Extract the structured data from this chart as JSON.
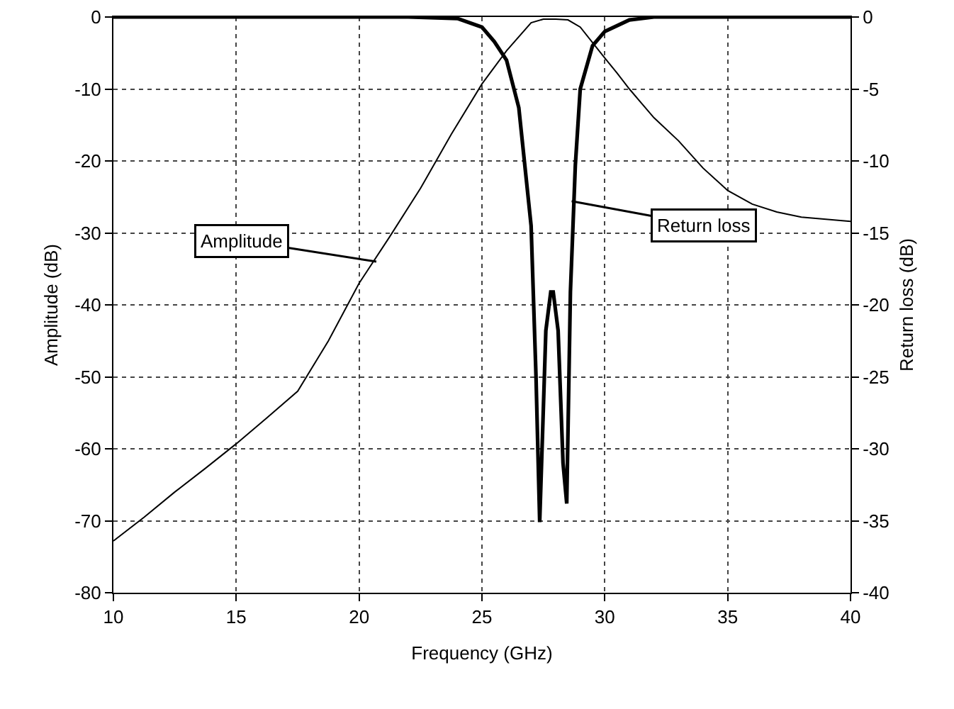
{
  "chart_data": {
    "type": "line",
    "xlabel": "Frequency (GHz)",
    "ylabel": "Amplitude (dB)",
    "y2label": "Return loss (dB)",
    "xlim": [
      10,
      40
    ],
    "xticks": [
      10,
      15,
      20,
      25,
      30,
      35,
      40
    ],
    "ylim": [
      -80,
      0
    ],
    "yticks": [
      -80,
      -70,
      -60,
      -50,
      -40,
      -30,
      -20,
      -10,
      0
    ],
    "y2lim": [
      -40,
      0
    ],
    "y2ticks": [
      -40,
      -35,
      -30,
      -25,
      -20,
      -15,
      -10,
      -5,
      0
    ],
    "grid": true,
    "marker": "none",
    "line_style": "solid",
    "series": [
      {
        "color": "#000000",
        "x": [
          10,
          11.25,
          12.5,
          13.75,
          15,
          16.25,
          17.5,
          18.75,
          20,
          21.25,
          22.5,
          23.75,
          25,
          26,
          27,
          27.5,
          28,
          28.5,
          29,
          30,
          30.5,
          31,
          31.5,
          32,
          33,
          34,
          35,
          36,
          37,
          38,
          40
        ],
        "values": [
          -72.8,
          -69.5,
          -66,
          -62.7,
          -59.3,
          -55.7,
          -52,
          -45,
          -37,
          -30.5,
          -23.8,
          -16.3,
          -9.3,
          -4.7,
          -0.8,
          -0.3,
          -0.3,
          -0.4,
          -1.4,
          -5.7,
          -7.8,
          -10,
          -12,
          -14,
          -17.2,
          -21,
          -24.1,
          -26,
          -27.1,
          -27.8,
          -28.4
        ]
      },
      {
        "color": "#000000",
        "axis": "y2",
        "x": [
          10,
          22,
          24,
          25,
          25.5,
          26,
          26.5,
          27,
          27.2,
          27.35,
          27.6,
          27.8,
          27.9,
          28.1,
          28.3,
          28.45,
          28.6,
          28.8,
          29,
          29.5,
          30,
          31,
          32,
          40
        ],
        "values": [
          0,
          0,
          -0.1,
          -0.7,
          -1.7,
          -3,
          -6.3,
          -14.5,
          -25,
          -35.1,
          -21.8,
          -19.1,
          -19.1,
          -21.8,
          -31,
          -33.8,
          -19.1,
          -10.3,
          -5,
          -2,
          -1,
          -0.2,
          0,
          0
        ]
      }
    ],
    "annotations": [
      {
        "text": "Amplitude",
        "x": 20.7,
        "y": -34
      },
      {
        "text": "Return loss",
        "x": 28.65,
        "y": -25.6
      }
    ]
  }
}
